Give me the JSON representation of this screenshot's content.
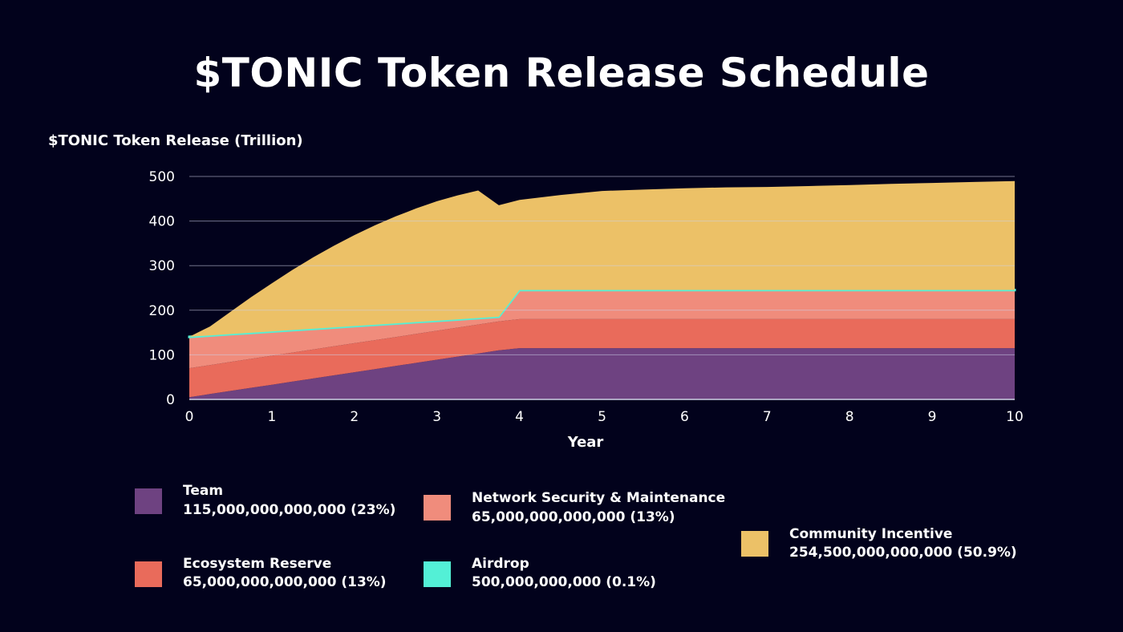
{
  "chart_data": {
    "type": "area",
    "stacked": true,
    "title": "$TONIC Token Release Schedule",
    "ylabel": "$TONIC Token Release (Trillion)",
    "xlabel": "Year",
    "xlim": [
      0,
      10
    ],
    "ylim": [
      0,
      500
    ],
    "x_ticks": [
      "0",
      "1",
      "2",
      "3",
      "4",
      "5",
      "6",
      "7",
      "8",
      "9",
      "10"
    ],
    "y_ticks": [
      "0",
      "100",
      "200",
      "300",
      "400",
      "500"
    ],
    "grid": true,
    "legend_position": "bottom",
    "x": [
      0,
      0.25,
      0.5,
      0.75,
      1,
      1.25,
      1.5,
      1.75,
      2,
      2.25,
      2.5,
      2.75,
      3,
      3.25,
      3.5,
      3.75,
      4,
      4.5,
      5,
      5.5,
      6,
      6.5,
      7,
      7.5,
      8,
      8.5,
      9,
      9.5,
      10
    ],
    "series": [
      {
        "name": "Team",
        "color": "#6e4281",
        "values": [
          5,
          12,
          19,
          26,
          33,
          40,
          47,
          54,
          61,
          68,
          75,
          82,
          89,
          96,
          103,
          110,
          115,
          115,
          115,
          115,
          115,
          115,
          115,
          115,
          115,
          115,
          115,
          115,
          115
        ]
      },
      {
        "name": "Ecosystem Reserve",
        "color": "#e96b5b",
        "values": [
          65,
          65,
          65,
          65,
          65,
          65,
          65,
          65,
          65,
          65,
          65,
          65,
          65,
          65,
          65,
          65,
          65,
          65,
          65,
          65,
          65,
          65,
          65,
          65,
          65,
          65,
          65,
          65,
          65
        ]
      },
      {
        "name": "Network Security & Maintenance",
        "color": "#f08c7c",
        "values": [
          70,
          66,
          62,
          58,
          54,
          50,
          46,
          42,
          38,
          34,
          30,
          26,
          22,
          18,
          14,
          10,
          65,
          65,
          65,
          65,
          65,
          65,
          65,
          65,
          65,
          65,
          65,
          65,
          65
        ]
      },
      {
        "name": "Airdrop",
        "color": "#53f0d6",
        "values": [
          0.5,
          0.5,
          0.5,
          0.5,
          0.5,
          0.5,
          0.5,
          0.5,
          0.5,
          0.5,
          0.5,
          0.5,
          0.5,
          0.5,
          0.5,
          0.5,
          0.5,
          0.5,
          0.5,
          0.5,
          0.5,
          0.5,
          0.5,
          0.5,
          0.5,
          0.5,
          0.5,
          0.5,
          0.5
        ]
      },
      {
        "name": "Community Incentive",
        "color": "#ecc167",
        "values": [
          0,
          20,
          50,
          80,
          108,
          135,
          160,
          183,
          204,
          223,
          240,
          255,
          268,
          278,
          286,
          250,
          202,
          213,
          222,
          225,
          228,
          230,
          231,
          233,
          235,
          238,
          240,
          242,
          244
        ]
      }
    ]
  },
  "legend": [
    {
      "name": "Team",
      "value": "115,000,000,000,000 (23%)",
      "color": "#6e4281"
    },
    {
      "name": "Ecosystem Reserve",
      "value": "65,000,000,000,000 (13%)",
      "color": "#e96b5b"
    },
    {
      "name": "Network Security & Maintenance",
      "value": "65,000,000,000,000 (13%)",
      "color": "#f08c7c"
    },
    {
      "name": "Airdrop",
      "value": "500,000,000,000 (0.1%)",
      "color": "#53f0d6"
    },
    {
      "name": "Community Incentive",
      "value": "254,500,000,000,000 (50.9%)",
      "color": "#ecc167"
    }
  ]
}
